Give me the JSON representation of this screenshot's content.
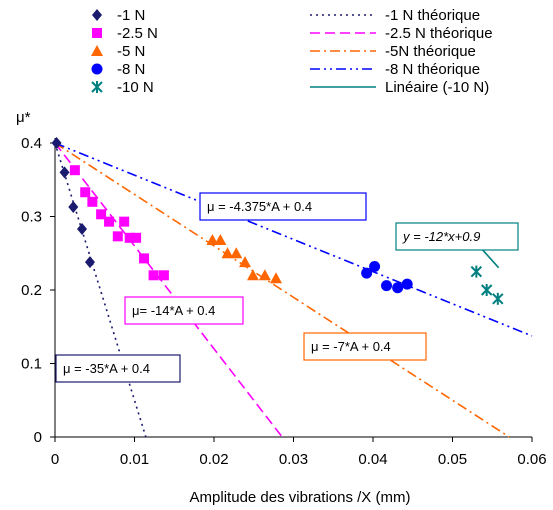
{
  "chart_data": {
    "type": "scatter",
    "xlabel": "Amplitude des vibrations /X (mm)",
    "ylabel": "μ*",
    "xlim": [
      0,
      0.06
    ],
    "ylim": [
      0,
      0.4
    ],
    "xticks": [
      "0",
      "0.01",
      "0.02",
      "0.03",
      "0.04",
      "0.05",
      "0.06"
    ],
    "yticks": [
      "0",
      "0.1",
      "0.2",
      "0.3",
      "0.4"
    ],
    "xtick_values": [
      0,
      0.01,
      0.02,
      0.03,
      0.04,
      0.05,
      0.06
    ],
    "ytick_values": [
      0,
      0.1,
      0.2,
      0.3,
      0.4
    ],
    "grid": false,
    "legend_position": "top",
    "series": [
      {
        "name": "-1 N",
        "marker": "diamond",
        "color": "#1a1a6e",
        "x": [
          0.0002,
          0.0012,
          0.0023,
          0.0034,
          0.0044
        ],
        "y": [
          0.4,
          0.36,
          0.313,
          0.283,
          0.238
        ]
      },
      {
        "name": "-2.5 N",
        "marker": "square",
        "color": "#ff00ff",
        "x": [
          0.0025,
          0.0038,
          0.0047,
          0.0058,
          0.0068,
          0.0079,
          0.0087,
          0.0094,
          0.0102,
          0.0112,
          0.0124,
          0.0137
        ],
        "y": [
          0.363,
          0.333,
          0.32,
          0.303,
          0.293,
          0.273,
          0.293,
          0.271,
          0.271,
          0.243,
          0.22,
          0.22
        ]
      },
      {
        "name": "-5 N",
        "marker": "triangle",
        "color": "#ff6600",
        "x": [
          0.0198,
          0.0208,
          0.0217,
          0.0228,
          0.0239,
          0.0249,
          0.0264,
          0.0278
        ],
        "y": [
          0.268,
          0.268,
          0.25,
          0.25,
          0.238,
          0.22,
          0.22,
          0.216
        ]
      },
      {
        "name": "-8 N",
        "marker": "circle",
        "color": "#0000ff",
        "x": [
          0.0392,
          0.0402,
          0.0417,
          0.0431,
          0.0443
        ],
        "y": [
          0.223,
          0.232,
          0.206,
          0.203,
          0.208
        ]
      },
      {
        "name": "-10 N",
        "marker": "asterisk",
        "color": "#008080",
        "x": [
          0.053,
          0.0543,
          0.0557
        ],
        "y": [
          0.225,
          0.2,
          0.188
        ]
      }
    ],
    "lines": [
      {
        "name": "-1 N théorique",
        "color": "#1a1a6e",
        "dash": "dot",
        "slope": -35,
        "intercept": 0.4
      },
      {
        "name": "-2.5 N théorique",
        "color": "#ff00ff",
        "dash": "dash",
        "slope": -14,
        "intercept": 0.4
      },
      {
        "name": "-5N théorique",
        "color": "#ff6600",
        "dash": "dashdot",
        "slope": -7,
        "intercept": 0.4
      },
      {
        "name": "-8 N théorique",
        "color": "#0000ff",
        "dash": "dashdotdot",
        "slope": -4.375,
        "intercept": 0.4
      },
      {
        "name": "Linéaire (-10 N)",
        "color": "#008080",
        "dash": "solid",
        "slope": -12,
        "intercept": 0.9,
        "xrange": [
          0.0528,
          0.0558
        ]
      }
    ],
    "annotations": [
      {
        "text": "μ = -35*A + 0.4",
        "color": "#1a1a6e"
      },
      {
        "text": "μ= -14*A + 0.4",
        "color": "#ff00ff"
      },
      {
        "text": "μ = -7*A + 0.4",
        "color": "#ff6600"
      },
      {
        "text": "μ = -4.375*A + 0.4",
        "color": "#0000ff"
      },
      {
        "text": "y = -12*x+0.9",
        "color": "#008080",
        "italic": true
      }
    ]
  }
}
